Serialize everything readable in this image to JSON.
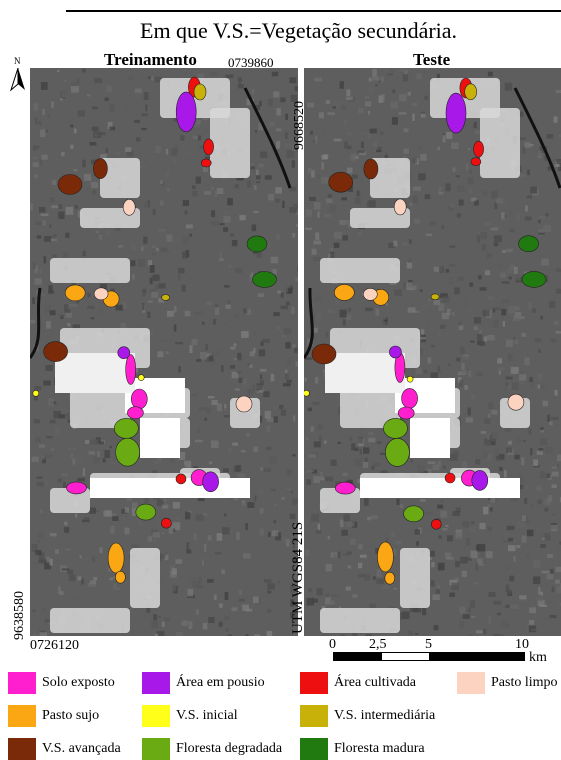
{
  "caption": "Em que V.S.=Vegetação secundária.",
  "panels": {
    "left_title": "Treinamento",
    "right_title": "Teste"
  },
  "coordinates": {
    "north_top": "9668520",
    "north_bottom": "9638580",
    "east_left": "0726120",
    "east_right": "0739860",
    "projection": "UTM WGS84 21S"
  },
  "north_arrow": {
    "label": "N",
    "icon": "north-arrow-icon"
  },
  "scale_bar": {
    "ticks": [
      "0",
      "2,5",
      "5",
      "10"
    ],
    "unit": "km"
  },
  "legend": [
    {
      "label": "Solo exposto",
      "color": "#ff1fcf"
    },
    {
      "label": "Área em pousio",
      "color": "#a818e8"
    },
    {
      "label": "Área cultivada",
      "color": "#ee1010"
    },
    {
      "label": "Pasto limpo",
      "color": "#fcd2c0"
    },
    {
      "label": "Pasto sujo",
      "color": "#fba713"
    },
    {
      "label": "V.S. inicial",
      "color": "#ffff1a"
    },
    {
      "label": "V.S. intermediária",
      "color": "#c8b20a"
    },
    {
      "label": "V.S. avançada",
      "color": "#7a2a08"
    },
    {
      "label": "Floresta degradada",
      "color": "#6aab14"
    },
    {
      "label": "Floresta madura",
      "color": "#207a10"
    }
  ]
}
